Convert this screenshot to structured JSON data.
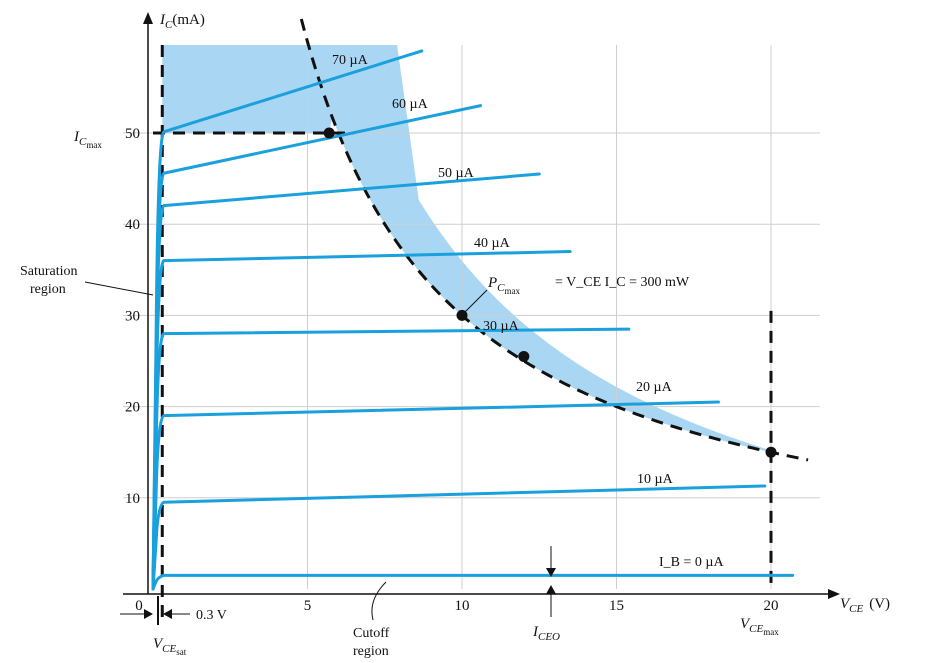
{
  "chart_data": {
    "type": "line",
    "title": "",
    "xlabel": "V_CE (V)",
    "ylabel": "I_C (mA)",
    "xlim": [
      0,
      22
    ],
    "ylim": [
      0,
      60
    ],
    "x_ticks": [
      0,
      5,
      10,
      15,
      20
    ],
    "y_ticks": [
      10,
      20,
      30,
      40,
      50
    ],
    "grid": true,
    "colors": {
      "curves": "#1aa0dc",
      "safe_region": "#a9d6f3",
      "limits": "#111111"
    },
    "series": [
      {
        "name": "70 µA",
        "knee": 50,
        "end": [
          8.7,
          59
        ]
      },
      {
        "name": "60 µA",
        "knee": 45.5,
        "end": [
          10.6,
          53
        ]
      },
      {
        "name": "50 µA",
        "knee": 42,
        "end": [
          12.5,
          45.5
        ]
      },
      {
        "name": "40 µA",
        "knee": 36,
        "end": [
          13.5,
          37
        ]
      },
      {
        "name": "30 µA",
        "knee": 28,
        "end": [
          15.4,
          28.5
        ]
      },
      {
        "name": "20 µA",
        "knee": 19,
        "end": [
          18.3,
          20.5
        ]
      },
      {
        "name": "10 µA",
        "knee": 9.5,
        "end": [
          19.8,
          11.3
        ]
      },
      {
        "name": "I_B = 0 µA",
        "knee": 1.5,
        "end": [
          20.7,
          1.5
        ]
      }
    ],
    "max_power_curve": {
      "equation": "V_CE I_C = 300 mW",
      "power_mW": 300,
      "x_range": [
        5.7,
        21.3
      ]
    },
    "limits": {
      "Ic_max_mA": 50,
      "Vce_max_V": 20,
      "Vce_sat_V": 0.3
    },
    "marked_points": [
      [
        5.7,
        50
      ],
      [
        10,
        30
      ],
      [
        12,
        25.5
      ],
      [
        20,
        15
      ]
    ]
  },
  "labels": {
    "ic_axis": "I_C",
    "ic_units": "(mA)",
    "vce_axis": "V_CE",
    "vce_units": "(V)",
    "ic_max_main": "I",
    "ic_max_sub1": "C",
    "ic_max_sub2": "max",
    "saturation_line1": "Saturation",
    "saturation_line2": "region",
    "pc_max_main": "P",
    "pc_max_sub1": "C",
    "pc_max_sub2": "max",
    "pc_equation": "= V_CE I_C = 300 mW",
    "vce_sat_offset": "0.3 V",
    "vce_sat_main": "V",
    "vce_sat_sub1": "CE",
    "vce_sat_sub2": "sat",
    "cutoff_line1": "Cutoff",
    "cutoff_line2": "region",
    "iceo_main": "I",
    "iceo_sub": "CEO",
    "vce_max_main": "V",
    "vce_max_sub1": "CE",
    "vce_max_sub2": "max"
  }
}
